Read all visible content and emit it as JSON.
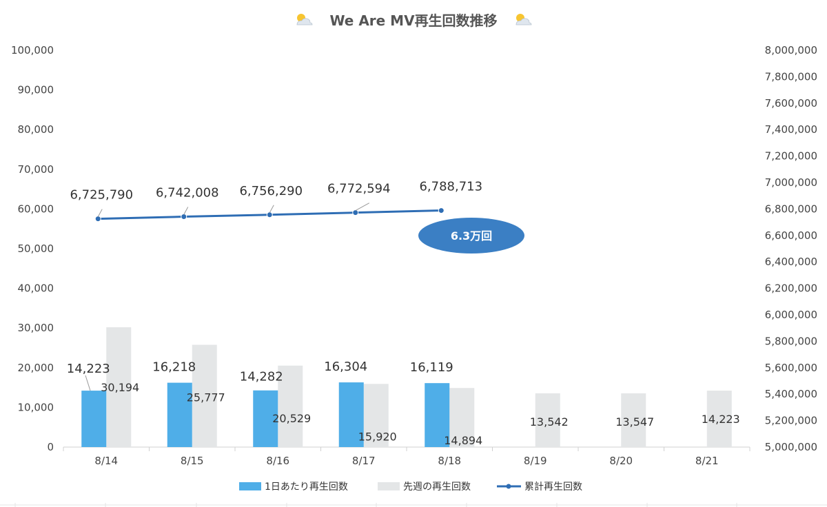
{
  "chart_data": {
    "type": "bar+line",
    "title": "We Are MV再生回数推移",
    "categories": [
      "8/14",
      "8/15",
      "8/16",
      "8/17",
      "8/18",
      "8/19",
      "8/20",
      "8/21"
    ],
    "series": [
      {
        "name": "1日あたり再生回数",
        "type": "bar",
        "axis": "left",
        "color": "#4faee8",
        "values": [
          14223,
          16218,
          14282,
          16304,
          16119,
          null,
          null,
          null
        ],
        "labels": [
          "14,223",
          "16,218",
          "14,282",
          "16,304",
          "16,119",
          "",
          "",
          ""
        ]
      },
      {
        "name": "先週の再生回数",
        "type": "bar",
        "axis": "left",
        "color": "#e4e6e7",
        "values": [
          30194,
          25777,
          20529,
          15920,
          14894,
          13542,
          13547,
          14223
        ],
        "labels": [
          "30,194",
          "25,777",
          "20,529",
          "15,920",
          "14,894",
          "13,542",
          "13,547",
          "14,223"
        ]
      },
      {
        "name": "累計再生回数",
        "type": "line",
        "axis": "right",
        "color": "#2e6db4",
        "values": [
          6725790,
          6742008,
          6756290,
          6772594,
          6788713,
          null,
          null,
          null
        ],
        "labels": [
          "6,725,790",
          "6,742,008",
          "6,756,290",
          "6,772,594",
          "6,788,713",
          "",
          "",
          ""
        ]
      }
    ],
    "y_left": {
      "range": [
        0,
        100000
      ],
      "ticks": [
        0,
        10000,
        20000,
        30000,
        40000,
        50000,
        60000,
        70000,
        80000,
        90000,
        100000
      ],
      "tick_labels": [
        "0",
        "10,000",
        "20,000",
        "30,000",
        "40,000",
        "50,000",
        "60,000",
        "70,000",
        "80,000",
        "90,000",
        "100,000"
      ]
    },
    "y_right": {
      "range": [
        5000000,
        8000000
      ],
      "ticks": [
        5000000,
        5200000,
        5400000,
        5600000,
        5800000,
        6000000,
        6200000,
        6400000,
        6600000,
        6800000,
        7000000,
        7200000,
        7400000,
        7600000,
        7800000,
        8000000
      ],
      "tick_labels": [
        "5,000,000",
        "5,200,000",
        "5,400,000",
        "5,600,000",
        "5,800,000",
        "6,000,000",
        "6,200,000",
        "6,400,000",
        "6,600,000",
        "6,800,000",
        "7,000,000",
        "7,200,000",
        "7,400,000",
        "7,600,000",
        "7,800,000",
        "8,000,000"
      ]
    },
    "annotation": {
      "text": "6.3万回",
      "color": "#3b7fc4"
    },
    "legend": {
      "placement": "bottom"
    },
    "grid": false
  }
}
